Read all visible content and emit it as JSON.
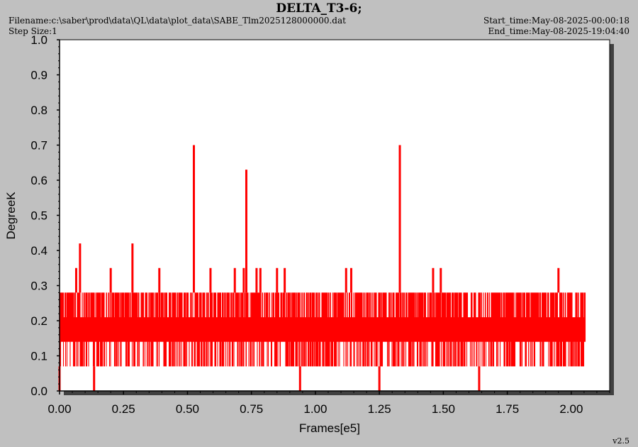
{
  "header": {
    "filename": "Filename:c:\\saber\\prod\\data\\QL\\data\\plot_data\\SABE_Tlm2025128000000.dat",
    "step_size": "Step Size:1",
    "start_time": "Start_time:May-08-2025-00:00:18",
    "end_time": "End_time:May-08-2025-19:04:40"
  },
  "version": "v2.5",
  "colors": {
    "background": "#c0c0c0",
    "plot_bg": "#ffffff",
    "series": "#ff0000",
    "shadow": "#404040"
  },
  "chart_data": {
    "type": "line",
    "title": "DELTA_T3-6;",
    "xlabel": "Frames[e5]",
    "ylabel": "DegreeK",
    "xlim": [
      0,
      2.15
    ],
    "ylim": [
      0,
      1.0
    ],
    "x_ticks": [
      "0.00",
      "0.25",
      "0.50",
      "0.75",
      "1.00",
      "1.25",
      "1.50",
      "1.75",
      "2.00"
    ],
    "y_ticks": [
      "0.0",
      "0.1",
      "0.2",
      "0.3",
      "0.4",
      "0.5",
      "0.6",
      "0.7",
      "0.8",
      "0.9",
      "1.0"
    ],
    "grid": false,
    "series": [
      {
        "x_range": [
          0,
          2.055
        ],
        "band": {
          "min": 0.07,
          "max": 0.28,
          "typical_low": 0.14,
          "typical_high": 0.21
        },
        "spikes": [
          {
            "x": 0.0,
            "y": 0.0
          },
          {
            "x": 0.015,
            "y": 0.28
          },
          {
            "x": 0.065,
            "y": 0.35
          },
          {
            "x": 0.08,
            "y": 0.42
          },
          {
            "x": 0.135,
            "y": 0.0
          },
          {
            "x": 0.2,
            "y": 0.35
          },
          {
            "x": 0.285,
            "y": 0.42
          },
          {
            "x": 0.39,
            "y": 0.35
          },
          {
            "x": 0.525,
            "y": 0.7
          },
          {
            "x": 0.59,
            "y": 0.35
          },
          {
            "x": 0.685,
            "y": 0.35
          },
          {
            "x": 0.72,
            "y": 0.35
          },
          {
            "x": 0.73,
            "y": 0.63
          },
          {
            "x": 0.77,
            "y": 0.35
          },
          {
            "x": 0.785,
            "y": 0.35
          },
          {
            "x": 0.85,
            "y": 0.35
          },
          {
            "x": 0.88,
            "y": 0.35
          },
          {
            "x": 0.94,
            "y": 0.0
          },
          {
            "x": 1.12,
            "y": 0.35
          },
          {
            "x": 1.14,
            "y": 0.35
          },
          {
            "x": 1.25,
            "y": 0.0
          },
          {
            "x": 1.33,
            "y": 0.7
          },
          {
            "x": 1.46,
            "y": 0.35
          },
          {
            "x": 1.49,
            "y": 0.35
          },
          {
            "x": 1.64,
            "y": 0.0
          },
          {
            "x": 1.95,
            "y": 0.35
          }
        ]
      }
    ]
  }
}
